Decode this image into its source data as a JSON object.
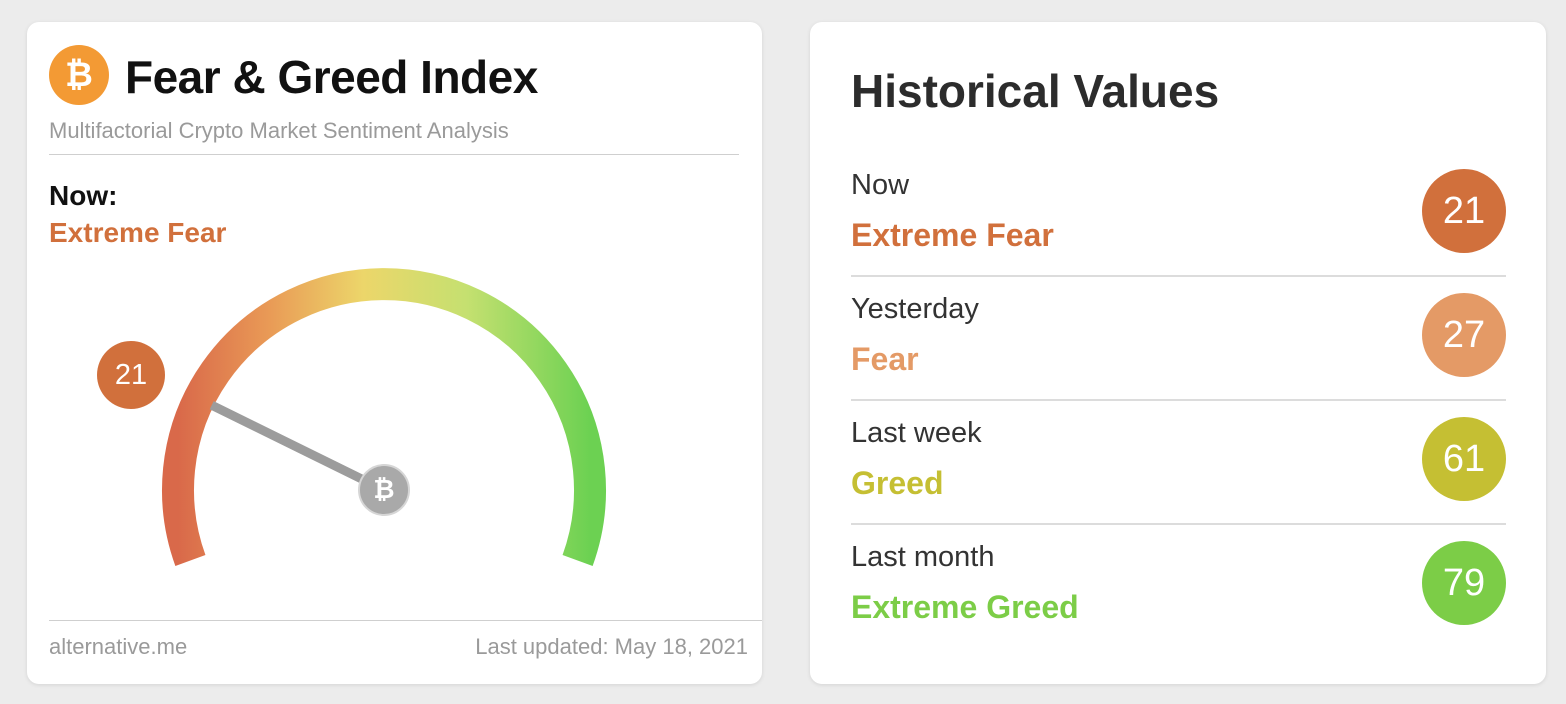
{
  "left_card": {
    "logo_glyph": "₿",
    "title": "Fear & Greed Index",
    "subtitle": "Multifactorial Crypto Market Sentiment Analysis",
    "now_label": "Now:",
    "now_classification": "Extreme Fear",
    "gauge_value": 21,
    "gauge_center_glyph": "₿",
    "footer_source": "alternative.me",
    "footer_updated": "Last updated: May 18, 2021",
    "icons": [
      "bitcoin-icon"
    ]
  },
  "right_card": {
    "title": "Historical Values",
    "rows": [
      {
        "period": "Now",
        "classification": "Extreme Fear",
        "value": "21",
        "color": "#d1703c"
      },
      {
        "period": "Yesterday",
        "classification": "Fear",
        "value": "27",
        "color": "#e49a66"
      },
      {
        "period": "Last week",
        "classification": "Greed",
        "value": "61",
        "color": "#c5bf33"
      },
      {
        "period": "Last month",
        "classification": "Extreme Greed",
        "value": "79",
        "color": "#7ccd47"
      }
    ]
  },
  "colors": {
    "extreme_fear": "#d1703c",
    "fear": "#e49a66",
    "greed": "#c5bf33",
    "extreme_greed": "#7ccd47",
    "logo_orange": "#f39a34"
  }
}
